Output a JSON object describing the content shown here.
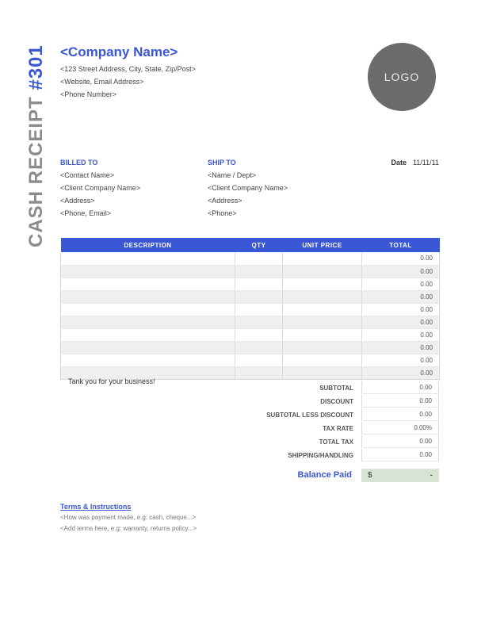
{
  "receipt": {
    "title_prefix": "CASH RECEIPT ",
    "title_num": "#301"
  },
  "company": {
    "name": "<Company Name>",
    "street": "<123 Street Address, City, State, Zip/Post>",
    "web": "<Website, Email Address>",
    "phone": "<Phone Number>",
    "logo_text": "LOGO"
  },
  "billed": {
    "heading": "BILLED TO",
    "contact": "<Contact Name>",
    "company": "<Client Company Name>",
    "address": "<Address>",
    "phone": "<Phone, Email>"
  },
  "ship": {
    "heading": "SHIP TO",
    "name": "<Name / Dept>",
    "company": "<Client Company Name>",
    "address": "<Address>",
    "phone": "<Phone>"
  },
  "date": {
    "label": "Date",
    "value": "11/11/11"
  },
  "columns": {
    "desc": "DESCRIPTION",
    "qty": "QTY",
    "unit": "UNIT PRICE",
    "total": "TOTAL"
  },
  "rows": [
    {
      "desc": "",
      "qty": "",
      "unit": "",
      "total": "0.00"
    },
    {
      "desc": "",
      "qty": "",
      "unit": "",
      "total": "0.00"
    },
    {
      "desc": "",
      "qty": "",
      "unit": "",
      "total": "0.00"
    },
    {
      "desc": "",
      "qty": "",
      "unit": "",
      "total": "0.00"
    },
    {
      "desc": "",
      "qty": "",
      "unit": "",
      "total": "0.00"
    },
    {
      "desc": "",
      "qty": "",
      "unit": "",
      "total": "0.00"
    },
    {
      "desc": "",
      "qty": "",
      "unit": "",
      "total": "0.00"
    },
    {
      "desc": "",
      "qty": "",
      "unit": "",
      "total": "0.00"
    },
    {
      "desc": "",
      "qty": "",
      "unit": "",
      "total": "0.00"
    },
    {
      "desc": "",
      "qty": "",
      "unit": "",
      "total": "0.00"
    }
  ],
  "totals": {
    "subtotal": {
      "label": "SUBTOTAL",
      "value": "0.00"
    },
    "discount": {
      "label": "DISCOUNT",
      "value": "0.00"
    },
    "sub_less": {
      "label": "SUBTOTAL LESS DISCOUNT",
      "value": "0.00"
    },
    "tax_rate": {
      "label": "TAX RATE",
      "value": "0.00%"
    },
    "total_tax": {
      "label": "TOTAL TAX",
      "value": "0.00"
    },
    "shipping": {
      "label": "SHIPPING/HANDLING",
      "value": "0.00"
    }
  },
  "thanks": "Tank you for your business!",
  "balance": {
    "label": "Balance Paid",
    "currency": "$",
    "value": "-"
  },
  "terms": {
    "heading": "Terms & Instructions",
    "line1": "<How was payment made, e.g: cash, cheque...>",
    "line2": "<Add terms here, e.g: warranty, returns policy...>"
  },
  "style": {
    "accent": "#3a57d5",
    "header_bg": "#3a57d5",
    "row_alt": "#efefef",
    "balance_bg": "#d9e3d4",
    "logo_bg": "#6b6b6b",
    "col_widths": {
      "desc": 220,
      "qty": 60,
      "unit": 100,
      "total": 98
    }
  }
}
